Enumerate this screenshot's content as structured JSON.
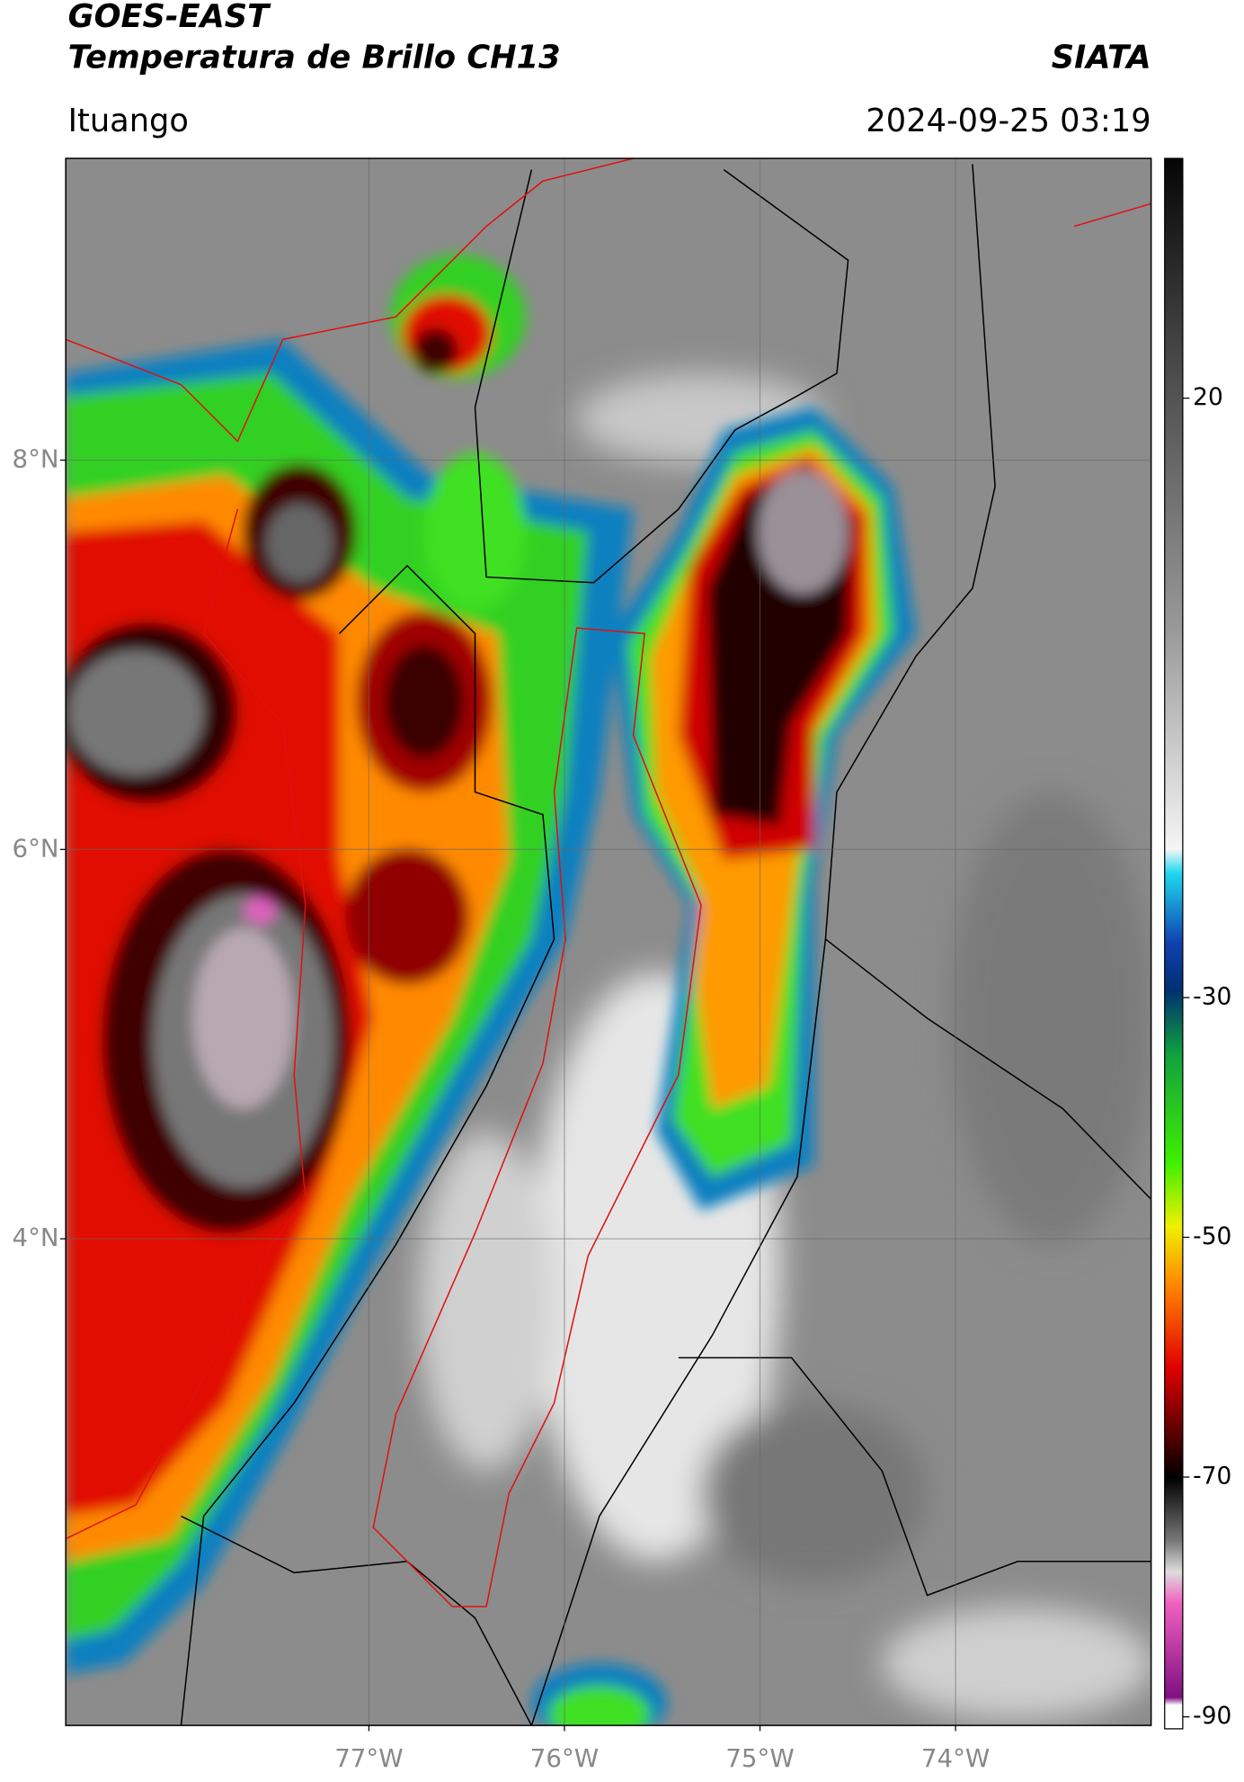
{
  "header": {
    "title": "GOES-EAST",
    "subtitle": "Temperatura de Brillo CH13",
    "brand": "SIATA",
    "location": "Ituango",
    "datetime": "2024-09-25 03:19"
  },
  "map": {
    "ylim": [
      1.5,
      9.55
    ],
    "yticks": [
      {
        "value": 8,
        "label": "8°N"
      },
      {
        "value": 6,
        "label": "6°N"
      },
      {
        "value": 4,
        "label": "4°N"
      }
    ],
    "xlim": [
      -78.55,
      -73.0
    ],
    "xticks": [
      {
        "value": -77,
        "label": "77°W"
      },
      {
        "value": -76,
        "label": "76°W"
      },
      {
        "value": -75,
        "label": "75°W"
      },
      {
        "value": -74,
        "label": "74°W"
      }
    ],
    "colorbar": {
      "lim": [
        -91,
        40
      ],
      "ticks": [
        20,
        -30,
        -50,
        -70,
        -90
      ]
    }
  }
}
